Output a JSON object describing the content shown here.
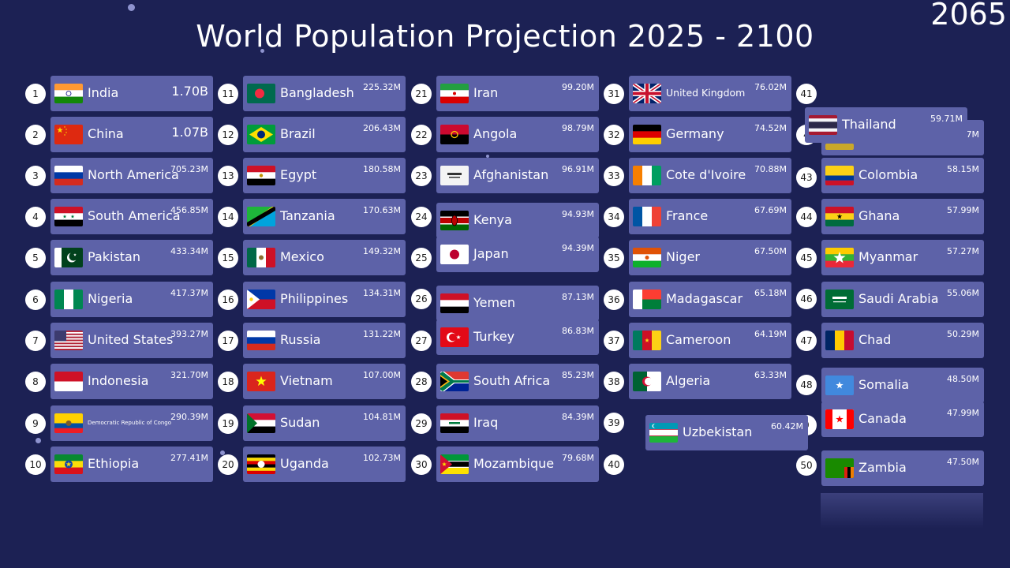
{
  "title": "World Population Projection 2025 - 2100",
  "year": "2065",
  "chart_data": {
    "type": "table",
    "entries": [
      {
        "rank": "1",
        "name": "India",
        "value": "1.70B",
        "flag": "india"
      },
      {
        "rank": "2",
        "name": "China",
        "value": "1.07B",
        "flag": "china"
      },
      {
        "rank": "3",
        "name": "North America",
        "value": "705.23M",
        "flag": "russia"
      },
      {
        "rank": "4",
        "name": "South America",
        "value": "456.85M",
        "flag": "syria"
      },
      {
        "rank": "5",
        "name": "Pakistan",
        "value": "433.34M",
        "flag": "pakistan"
      },
      {
        "rank": "6",
        "name": "Nigeria",
        "value": "417.37M",
        "flag": "nigeria"
      },
      {
        "rank": "7",
        "name": "United States",
        "value": "393.27M",
        "flag": "usa"
      },
      {
        "rank": "8",
        "name": "Indonesia",
        "value": "321.70M",
        "flag": "indonesia"
      },
      {
        "rank": "9",
        "name": "Democratic Republic of Congo",
        "value": "290.39M",
        "flag": "ecuador"
      },
      {
        "rank": "10",
        "name": "Ethiopia",
        "value": "277.41M",
        "flag": "ethiopia"
      },
      {
        "rank": "11",
        "name": "Bangladesh",
        "value": "225.32M",
        "flag": "bangladesh"
      },
      {
        "rank": "12",
        "name": "Brazil",
        "value": "206.43M",
        "flag": "brazil"
      },
      {
        "rank": "13",
        "name": "Egypt",
        "value": "180.58M",
        "flag": "egypt"
      },
      {
        "rank": "14",
        "name": "Tanzania",
        "value": "170.63M",
        "flag": "tanzania"
      },
      {
        "rank": "15",
        "name": "Mexico",
        "value": "149.32M",
        "flag": "mexico"
      },
      {
        "rank": "16",
        "name": "Philippines",
        "value": "134.31M",
        "flag": "philippines"
      },
      {
        "rank": "17",
        "name": "Russia",
        "value": "131.22M",
        "flag": "russia"
      },
      {
        "rank": "18",
        "name": "Vietnam",
        "value": "107.00M",
        "flag": "vietnam"
      },
      {
        "rank": "19",
        "name": "Sudan",
        "value": "104.81M",
        "flag": "sudan"
      },
      {
        "rank": "20",
        "name": "Uganda",
        "value": "102.73M",
        "flag": "uganda"
      },
      {
        "rank": "21",
        "name": "Iran",
        "value": "99.20M",
        "flag": "iran"
      },
      {
        "rank": "22",
        "name": "Angola",
        "value": "98.79M",
        "flag": "angola"
      },
      {
        "rank": "23",
        "name": "Afghanistan",
        "value": "96.91M",
        "flag": "afghanistan"
      },
      {
        "rank": "24",
        "name": "Kenya",
        "value": "94.93M",
        "flag": "kenya"
      },
      {
        "rank": "25",
        "name": "Japan",
        "value": "94.39M",
        "flag": "japan"
      },
      {
        "rank": "26",
        "name": "Yemen",
        "value": "87.13M",
        "flag": "yemen"
      },
      {
        "rank": "27",
        "name": "Turkey",
        "value": "86.83M",
        "flag": "turkey"
      },
      {
        "rank": "28",
        "name": "South Africa",
        "value": "85.23M",
        "flag": "southafrica"
      },
      {
        "rank": "29",
        "name": "Iraq",
        "value": "84.39M",
        "flag": "iraq"
      },
      {
        "rank": "30",
        "name": "Mozambique",
        "value": "79.68M",
        "flag": "mozambique"
      },
      {
        "rank": "31",
        "name": "United Kingdom",
        "value": "76.02M",
        "flag": "uk"
      },
      {
        "rank": "32",
        "name": "Germany",
        "value": "74.52M",
        "flag": "germany"
      },
      {
        "rank": "33",
        "name": "Cote d'Ivoire",
        "value": "70.88M",
        "flag": "ivorycoast"
      },
      {
        "rank": "34",
        "name": "France",
        "value": "67.69M",
        "flag": "france"
      },
      {
        "rank": "35",
        "name": "Niger",
        "value": "67.50M",
        "flag": "niger"
      },
      {
        "rank": "36",
        "name": "Madagascar",
        "value": "65.18M",
        "flag": "madagascar"
      },
      {
        "rank": "37",
        "name": "Cameroon",
        "value": "64.19M",
        "flag": "cameroon"
      },
      {
        "rank": "38",
        "name": "Algeria",
        "value": "63.33M",
        "flag": "algeria"
      },
      {
        "rank": "",
        "name": "Uzbekistan",
        "value": "60.42M",
        "flag": "uzbekistan"
      },
      {
        "rank": "",
        "name": "Thailand",
        "value": "59.71M",
        "flag": "thailand"
      },
      {
        "rank": "43",
        "name": "Colombia",
        "value": "58.15M",
        "flag": "colombia"
      },
      {
        "rank": "44",
        "name": "Ghana",
        "value": "57.99M",
        "flag": "ghana"
      },
      {
        "rank": "45",
        "name": "Myanmar",
        "value": "57.27M",
        "flag": "myanmar"
      },
      {
        "rank": "46",
        "name": "Saudi Arabia",
        "value": "55.06M",
        "flag": "saudi"
      },
      {
        "rank": "47",
        "name": "Chad",
        "value": "50.29M",
        "flag": "chad"
      },
      {
        "rank": "48",
        "name": "Somalia",
        "value": "48.50M",
        "flag": "somalia"
      },
      {
        "rank": "",
        "name": "Canada",
        "value": "47.99M",
        "flag": "canada"
      },
      {
        "rank": "50",
        "name": "Zambia",
        "value": "47.50M",
        "flag": "zambia"
      }
    ],
    "extra_ranks": [
      "39",
      "40",
      "41"
    ],
    "partial_values": [
      "7M"
    ]
  }
}
